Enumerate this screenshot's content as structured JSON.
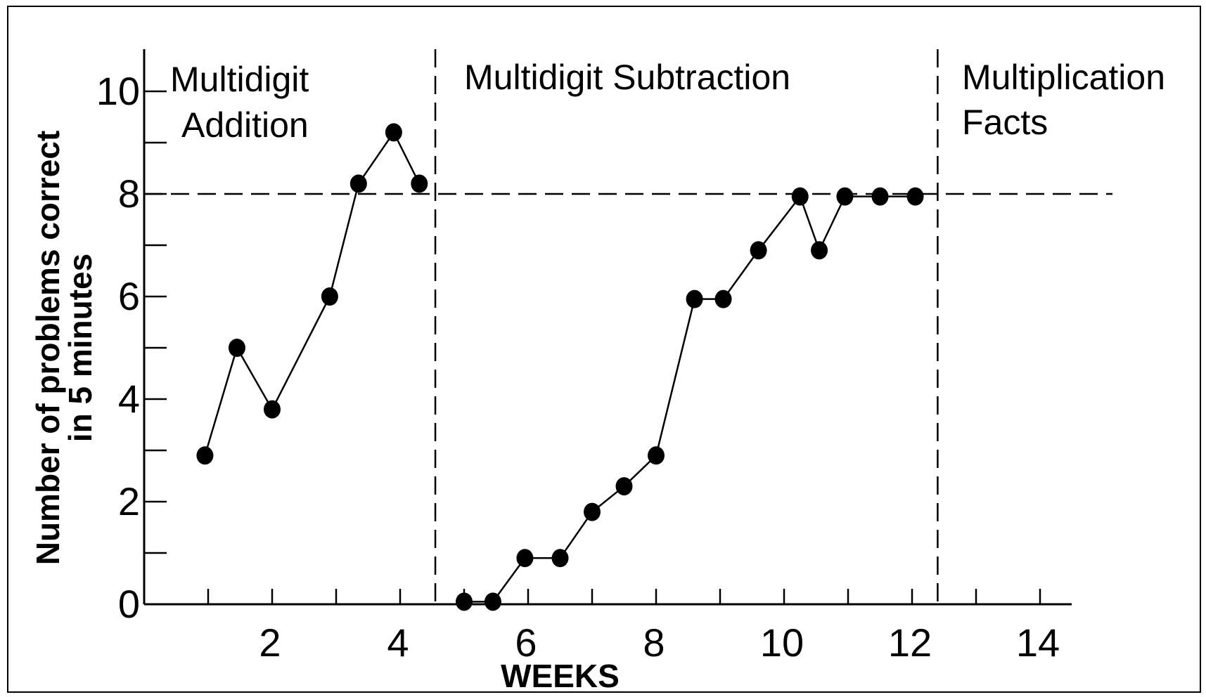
{
  "chart_data": {
    "type": "line",
    "xlabel": "WEEKS",
    "ylabel": "Number of problems correct\nin 5 minutes",
    "xlim": [
      0,
      14.5
    ],
    "ylim": [
      0,
      10.9
    ],
    "x_ticks": [
      2,
      4,
      6,
      8,
      10,
      12,
      14
    ],
    "x_minor_ticks": [
      1,
      3,
      5,
      7,
      9,
      11,
      13
    ],
    "y_ticks": [
      0,
      2,
      4,
      6,
      8,
      10
    ],
    "y_minor_ticks": [
      1,
      3,
      5,
      7,
      9
    ],
    "criterion_line": {
      "y": 8,
      "style": "dashed"
    },
    "phase_lines": [
      {
        "x": 4.55,
        "style": "dashed"
      },
      {
        "x": 12.4,
        "style": "dashed"
      }
    ],
    "phases": [
      {
        "label": [
          "Multidigit",
          "Addition"
        ]
      },
      {
        "label": [
          "Multidigit Subtraction"
        ]
      },
      {
        "label": [
          "Multiplication",
          "Facts"
        ]
      }
    ],
    "series": [
      {
        "points": [
          [
            0.95,
            2.9
          ],
          [
            1.45,
            5.0
          ],
          [
            2.0,
            3.8
          ],
          [
            2.9,
            6.0
          ],
          [
            3.35,
            8.2
          ],
          [
            3.9,
            9.2
          ],
          [
            4.3,
            8.2
          ]
        ]
      },
      {
        "points": [
          [
            5.0,
            0.05
          ],
          [
            5.45,
            0.05
          ],
          [
            5.95,
            0.9
          ],
          [
            6.5,
            0.9
          ],
          [
            7.0,
            1.8
          ],
          [
            7.5,
            2.3
          ],
          [
            8.0,
            2.9
          ],
          [
            8.6,
            5.95
          ],
          [
            9.05,
            5.95
          ],
          [
            9.6,
            6.9
          ],
          [
            10.25,
            7.95
          ],
          [
            10.55,
            6.9
          ],
          [
            10.95,
            7.95
          ],
          [
            11.5,
            7.95
          ],
          [
            12.05,
            7.95
          ]
        ]
      }
    ],
    "grid": false,
    "line_color": "#000000",
    "marker_color": "#000000"
  }
}
